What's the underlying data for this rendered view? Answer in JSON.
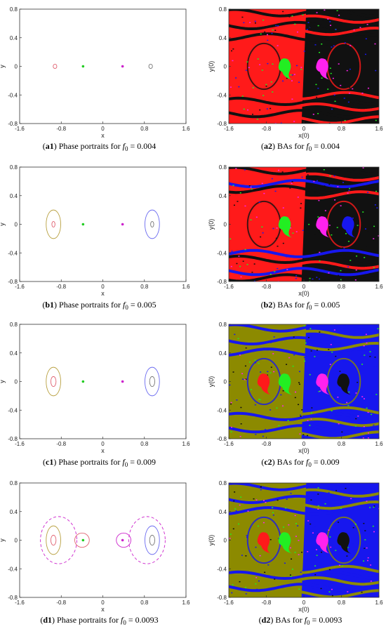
{
  "colors": {
    "ba_red": "#ff1a1a",
    "ba_black": "#111111",
    "ba_olive": "#8c8a00",
    "ba_blue": "#1717ee",
    "ba_green": "#22ee22",
    "ba_magenta": "#ff22ee",
    "orbit_red": "#e06070",
    "orbit_olive": "#b8a040",
    "orbit_blue": "#6a6af0",
    "orbit_gray": "#777777",
    "orbit_green": "#22cc22",
    "orbit_magenta": "#cc22cc"
  },
  "chart_data": [
    {
      "id": "a1",
      "type": "scatter",
      "xlabel": "x",
      "ylabel": "y",
      "xlim": [
        -1.6,
        1.6
      ],
      "ylim": [
        -0.8,
        0.8
      ],
      "xticks": [
        "-1.6",
        "-0.8",
        "0",
        "0.8",
        "1.6"
      ],
      "yticks": [
        "0.8",
        "0.4",
        "0",
        "-0.4",
        "-0.8"
      ],
      "caption": {
        "tag": "a1",
        "text": " Phase portraits for ",
        "sym": "f",
        "sub": "0",
        "value": " = 0.004"
      },
      "orbits": [
        {
          "cx": -0.92,
          "cy": 0,
          "rx": 0.035,
          "ry": 0.03,
          "color": "orbit_red"
        },
        {
          "cx": 0.92,
          "cy": 0,
          "rx": 0.035,
          "ry": 0.03,
          "color": "orbit_gray"
        }
      ],
      "points": [
        {
          "x": -0.38,
          "y": 0,
          "color": "orbit_green"
        },
        {
          "x": 0.38,
          "y": 0,
          "color": "orbit_magenta"
        }
      ]
    },
    {
      "id": "a2",
      "type": "heatmap",
      "xlabel": "x(0)",
      "ylabel": "y(0)",
      "xlim": [
        -1.6,
        1.6
      ],
      "ylim": [
        -0.8,
        0.8
      ],
      "xticks": [
        "-1.6",
        "-0.8",
        "0",
        "0.8",
        "1.6"
      ],
      "yticks": [
        "0.8",
        "0.4",
        "0",
        "-0.4",
        "-0.8"
      ],
      "caption": {
        "tag": "a2",
        "text": " BAs for ",
        "sym": "f",
        "sub": "0",
        "value": " = 0.004"
      },
      "base": "ba_red",
      "left": "ba_red",
      "right": "ba_black",
      "band_colors": [
        "ba_black",
        "ba_red"
      ],
      "islands": [
        {
          "x": -0.4,
          "color": "ba_green"
        },
        {
          "x": 0.4,
          "color": "ba_magenta"
        }
      ]
    },
    {
      "id": "b1",
      "type": "scatter",
      "xlabel": "x",
      "ylabel": "y",
      "xlim": [
        -1.6,
        1.6
      ],
      "ylim": [
        -0.8,
        0.8
      ],
      "xticks": [
        "-1.6",
        "-0.8",
        "0",
        "0.8",
        "1.6"
      ],
      "yticks": [
        "0.8",
        "0.4",
        "0",
        "-0.4",
        "-0.8"
      ],
      "caption": {
        "tag": "b1",
        "text": " Phase portraits for ",
        "sym": "f",
        "sub": "0",
        "value": " = 0.005"
      },
      "orbits": [
        {
          "cx": -0.95,
          "cy": 0,
          "rx": 0.14,
          "ry": 0.2,
          "color": "orbit_olive"
        },
        {
          "cx": -0.95,
          "cy": 0,
          "rx": 0.03,
          "ry": 0.04,
          "color": "orbit_red"
        },
        {
          "cx": 0.95,
          "cy": 0,
          "rx": 0.14,
          "ry": 0.2,
          "color": "orbit_blue"
        },
        {
          "cx": 0.95,
          "cy": 0,
          "rx": 0.03,
          "ry": 0.04,
          "color": "orbit_gray"
        }
      ],
      "points": [
        {
          "x": -0.38,
          "y": 0,
          "color": "orbit_green"
        },
        {
          "x": 0.38,
          "y": 0,
          "color": "orbit_magenta"
        }
      ]
    },
    {
      "id": "b2",
      "type": "heatmap",
      "xlabel": "x(0)",
      "ylabel": "y(0)",
      "xlim": [
        -1.6,
        1.6
      ],
      "ylim": [
        -0.8,
        0.8
      ],
      "xticks": [
        "-1.6",
        "-0.8",
        "0",
        "0.8",
        "1.6"
      ],
      "yticks": [
        "0.8",
        "0.4",
        "0",
        "-0.4",
        "-0.8"
      ],
      "caption": {
        "tag": "b2",
        "text": " BAs for ",
        "sym": "f",
        "sub": "0",
        "value": " = 0.005"
      },
      "base": "ba_red",
      "left": "ba_red",
      "right": "ba_black",
      "band_colors": [
        "ba_black",
        "ba_red",
        "ba_blue"
      ],
      "islands": [
        {
          "x": -0.4,
          "color": "ba_green"
        },
        {
          "x": 0.4,
          "color": "ba_magenta"
        },
        {
          "x": 0.95,
          "color": "ba_blue"
        }
      ]
    },
    {
      "id": "c1",
      "type": "scatter",
      "xlabel": "x",
      "ylabel": "y",
      "xlim": [
        -1.6,
        1.6
      ],
      "ylim": [
        -0.8,
        0.8
      ],
      "xticks": [
        "-1.6",
        "-0.8",
        "0",
        "0.8",
        "1.6"
      ],
      "yticks": [
        "0.8",
        "0.4",
        "0",
        "-0.4",
        "-0.8"
      ],
      "caption": {
        "tag": "c1",
        "text": " Phase portraits for ",
        "sym": "f",
        "sub": "0",
        "value": " = 0.009"
      },
      "orbits": [
        {
          "cx": -0.95,
          "cy": 0,
          "rx": 0.14,
          "ry": 0.2,
          "color": "orbit_olive"
        },
        {
          "cx": -0.95,
          "cy": 0,
          "rx": 0.05,
          "ry": 0.07,
          "color": "orbit_red"
        },
        {
          "cx": 0.95,
          "cy": 0,
          "rx": 0.14,
          "ry": 0.2,
          "color": "orbit_blue"
        },
        {
          "cx": 0.95,
          "cy": 0,
          "rx": 0.05,
          "ry": 0.07,
          "color": "orbit_gray"
        }
      ],
      "points": [
        {
          "x": -0.38,
          "y": 0,
          "color": "orbit_green"
        },
        {
          "x": 0.38,
          "y": 0,
          "color": "orbit_magenta"
        }
      ]
    },
    {
      "id": "c2",
      "type": "heatmap",
      "xlabel": "x(0)",
      "ylabel": "y(0)",
      "xlim": [
        -1.6,
        1.6
      ],
      "ylim": [
        -0.8,
        0.8
      ],
      "xticks": [
        "-1.6",
        "-0.8",
        "0",
        "0.8",
        "1.6"
      ],
      "yticks": [
        "0.8",
        "0.4",
        "0",
        "-0.4",
        "-0.8"
      ],
      "caption": {
        "tag": "c2",
        "text": " BAs for ",
        "sym": "f",
        "sub": "0",
        "value": " = 0.009"
      },
      "base": "ba_olive",
      "left": "ba_olive",
      "right": "ba_blue",
      "band_colors": [
        "ba_blue",
        "ba_olive"
      ],
      "islands": [
        {
          "x": -0.85,
          "color": "ba_red"
        },
        {
          "x": -0.4,
          "color": "ba_green"
        },
        {
          "x": 0.4,
          "color": "ba_magenta"
        },
        {
          "x": 0.85,
          "color": "ba_black"
        }
      ]
    },
    {
      "id": "d1",
      "type": "scatter",
      "xlabel": "x",
      "ylabel": "y",
      "xlim": [
        -1.6,
        1.6
      ],
      "ylim": [
        -0.8,
        0.8
      ],
      "xticks": [
        "-1.6",
        "-0.8",
        "0",
        "0.8",
        "1.6"
      ],
      "yticks": [
        "0.8",
        "0.4",
        "0",
        "-0.4",
        "-0.8"
      ],
      "caption": {
        "tag": "d1",
        "text": " Phase portraits for ",
        "sym": "f",
        "sub": "0",
        "value": " = 0.0093"
      },
      "orbits": [
        {
          "cx": -0.95,
          "cy": 0,
          "rx": 0.14,
          "ry": 0.2,
          "color": "orbit_olive"
        },
        {
          "cx": -0.95,
          "cy": 0,
          "rx": 0.05,
          "ry": 0.07,
          "color": "orbit_red"
        },
        {
          "cx": 0.95,
          "cy": 0,
          "rx": 0.14,
          "ry": 0.2,
          "color": "orbit_blue"
        },
        {
          "cx": 0.95,
          "cy": 0,
          "rx": 0.05,
          "ry": 0.07,
          "color": "orbit_gray"
        },
        {
          "cx": -0.85,
          "cy": 0,
          "rx": 0.35,
          "ry": 0.33,
          "color": "orbit_magenta",
          "dash": true
        },
        {
          "cx": 0.85,
          "cy": 0,
          "rx": 0.35,
          "ry": 0.33,
          "color": "orbit_magenta",
          "dash": true
        },
        {
          "cx": -0.4,
          "cy": 0,
          "rx": 0.14,
          "ry": 0.1,
          "color": "orbit_red"
        },
        {
          "cx": 0.4,
          "cy": 0,
          "rx": 0.14,
          "ry": 0.1,
          "color": "orbit_magenta"
        }
      ],
      "points": [
        {
          "x": -0.38,
          "y": 0,
          "color": "orbit_green"
        },
        {
          "x": 0.38,
          "y": 0,
          "color": "orbit_magenta"
        }
      ]
    },
    {
      "id": "d2",
      "type": "heatmap",
      "xlabel": "x(0)",
      "ylabel": "y(0)",
      "xlim": [
        -1.6,
        1.6
      ],
      "ylim": [
        -0.8,
        0.8
      ],
      "xticks": [
        "-1.6",
        "-0.8",
        "0",
        "0.8",
        "1.6"
      ],
      "yticks": [
        "0.8",
        "0.4",
        "0",
        "-0.4",
        "-0.8"
      ],
      "caption": {
        "tag": "d2",
        "text": " BAs for ",
        "sym": "f",
        "sub": "0",
        "value": " = 0.0093"
      },
      "base": "ba_olive",
      "left": "ba_olive",
      "right": "ba_blue",
      "band_colors": [
        "ba_blue",
        "ba_olive"
      ],
      "islands": [
        {
          "x": -0.85,
          "color": "ba_red"
        },
        {
          "x": -0.4,
          "color": "ba_green"
        },
        {
          "x": 0.4,
          "color": "ba_magenta"
        },
        {
          "x": 0.85,
          "color": "ba_black"
        }
      ]
    }
  ]
}
